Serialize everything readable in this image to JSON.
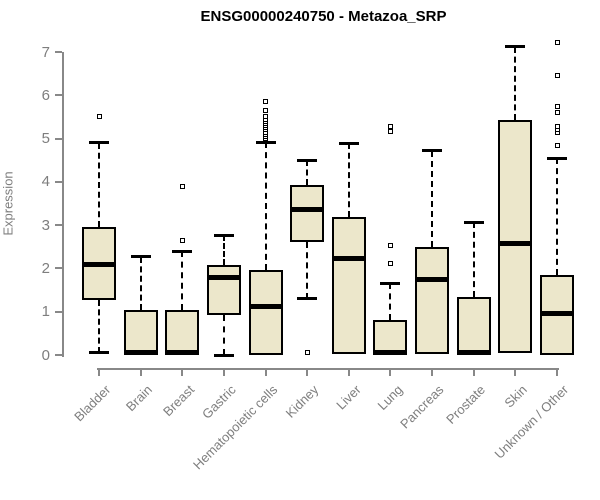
{
  "chart_data": {
    "type": "boxplot",
    "title": "ENSG00000240750 - Metazoa_SRP",
    "ylabel": "Expression",
    "ylim": [
      0,
      7
    ],
    "yticks": [
      "0",
      "1",
      "2",
      "3",
      "4",
      "5",
      "6",
      "7"
    ],
    "grid": false,
    "categories": [
      "Bladder",
      "Brain",
      "Breast",
      "Gastric",
      "Hematopoietic cells",
      "Kidney",
      "Liver",
      "Lung",
      "Pancreas",
      "Prostate",
      "Skin",
      "Unknown / Other"
    ],
    "series": [
      {
        "category": "Bladder",
        "low": 0.05,
        "q1": 1.27,
        "median": 2.08,
        "q3": 2.95,
        "high": 4.9,
        "outliers": [
          5.5
        ]
      },
      {
        "category": "Brain",
        "low": 0,
        "q1": 0,
        "median": 0.05,
        "q3": 1.05,
        "high": 2.27,
        "outliers": []
      },
      {
        "category": "Breast",
        "low": 0,
        "q1": 0,
        "median": 0.05,
        "q3": 1.05,
        "high": 2.4,
        "outliers": [
          2.65,
          3.9
        ]
      },
      {
        "category": "Gastric",
        "low": 0,
        "q1": 0.92,
        "median": 1.8,
        "q3": 2.08,
        "high": 2.77,
        "outliers": []
      },
      {
        "category": "Hematopoietic cells",
        "low": 0,
        "q1": 0,
        "median": 1.13,
        "q3": 1.96,
        "high": 4.92,
        "outliers": [
          5.0,
          5.05,
          5.1,
          5.15,
          5.2,
          5.25,
          5.3,
          5.35,
          5.4,
          5.45,
          5.5,
          5.65,
          5.85
        ]
      },
      {
        "category": "Kidney",
        "low": 1.3,
        "q1": 2.6,
        "median": 3.37,
        "q3": 3.93,
        "high": 4.5,
        "outliers": [
          0.05
        ]
      },
      {
        "category": "Liver",
        "low": 0,
        "q1": 0.03,
        "median": 2.24,
        "q3": 3.19,
        "high": 4.89,
        "outliers": []
      },
      {
        "category": "Lung",
        "low": 0,
        "q1": 0,
        "median": 0.05,
        "q3": 0.8,
        "high": 1.66,
        "outliers": [
          2.12,
          2.54,
          5.17,
          5.29
        ]
      },
      {
        "category": "Pancreas",
        "low": 0,
        "q1": 0.03,
        "median": 1.74,
        "q3": 2.5,
        "high": 4.72,
        "outliers": []
      },
      {
        "category": "Prostate",
        "low": 0,
        "q1": 0,
        "median": 0.05,
        "q3": 1.33,
        "high": 3.07,
        "outliers": []
      },
      {
        "category": "Skin",
        "low": 0,
        "q1": 0.05,
        "median": 2.58,
        "q3": 5.42,
        "high": 7.12,
        "outliers": []
      },
      {
        "category": "Unknown / Other",
        "low": 0,
        "q1": 0,
        "median": 0.96,
        "q3": 1.85,
        "high": 4.55,
        "outliers": [
          4.85,
          5.15,
          5.21,
          5.27,
          5.6,
          5.74,
          6.46,
          7.21
        ]
      }
    ]
  },
  "colors": {
    "box_fill": "#ECE7CB",
    "box_border": "#000000",
    "median": "#000000",
    "whisker": "#000000",
    "axis": "#888888",
    "tick_label": "#7E7E7E",
    "title": "#000000",
    "background": "#FFFFFF"
  }
}
